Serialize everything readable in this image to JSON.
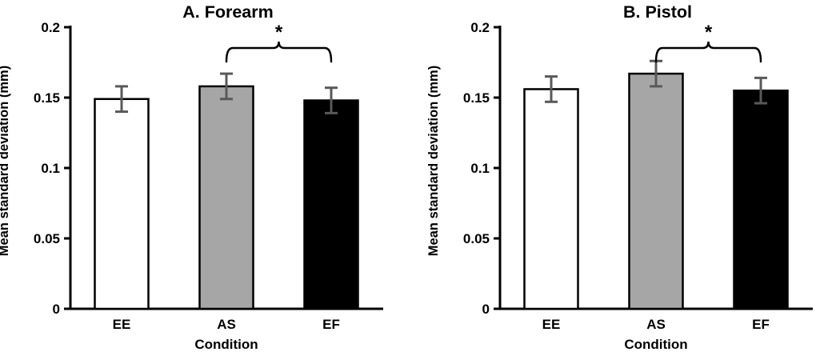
{
  "figure": {
    "background": "#ffffff",
    "panel_count": 2
  },
  "style": {
    "axis_color": "#000000",
    "bar_border_color": "#000000",
    "error_bar_color": "#595959",
    "text_color": "#000000",
    "gray_bar_fill": "#a6a6a6",
    "white_bar_fill": "#ffffff",
    "black_bar_fill": "#000000"
  },
  "chart_data": [
    {
      "type": "bar",
      "title": "A. Forearm",
      "xlabel": "Condition",
      "ylabel": "Mean standard deviation (mm)",
      "categories": [
        "EE",
        "AS",
        "EF"
      ],
      "values": [
        0.149,
        0.158,
        0.148
      ],
      "error_bars": [
        0.009,
        0.009,
        0.009
      ],
      "bar_fills": [
        "#ffffff",
        "#a6a6a6",
        "#000000"
      ],
      "ylim": [
        0,
        0.2
      ],
      "yticks": [
        0,
        0.05,
        0.1,
        0.15,
        0.2
      ],
      "ytick_labels": [
        "0",
        "0.05",
        "0.1",
        "0.15",
        "0.2"
      ],
      "grid": false,
      "legend": "none",
      "significance": {
        "between": [
          "AS",
          "EF"
        ],
        "label": "*"
      }
    },
    {
      "type": "bar",
      "title": "B. Pistol",
      "xlabel": "Condition",
      "ylabel": "Mean standard deviation (mm)",
      "categories": [
        "EE",
        "AS",
        "EF"
      ],
      "values": [
        0.156,
        0.167,
        0.155
      ],
      "error_bars": [
        0.009,
        0.009,
        0.009
      ],
      "bar_fills": [
        "#ffffff",
        "#a6a6a6",
        "#000000"
      ],
      "ylim": [
        0,
        0.2
      ],
      "yticks": [
        0,
        0.05,
        0.1,
        0.15,
        0.2
      ],
      "ytick_labels": [
        "0",
        "0.05",
        "0.1",
        "0.15",
        "0.2"
      ],
      "grid": false,
      "legend": "none",
      "significance": {
        "between": [
          "AS",
          "EF"
        ],
        "label": "*"
      }
    }
  ]
}
